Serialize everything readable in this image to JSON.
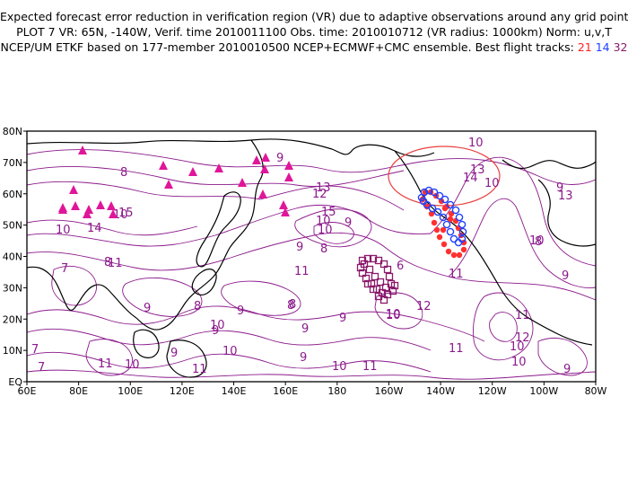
{
  "title": {
    "line1": "Expected forecast error reduction in verification region (VR) due to adaptive observations around any grid point.",
    "line2": "PLOT 7 VR: 65N, -140W, Verif. time 2010011100 Obs. time: 2010010712 (VR radius: 1000km) Norm: u,v,T",
    "line3_prefix": "NCEP/UM ETKF based on 177-member 2010010500 NCEP+ECMWF+CMC ensemble. Best flight tracks:",
    "tracks": [
      {
        "label": "21",
        "color": "#ff2020"
      },
      {
        "label": "14",
        "color": "#2040ff"
      },
      {
        "label": "32",
        "color": "#8b1a6b"
      }
    ]
  },
  "map": {
    "lat_ticks": [
      "80N",
      "70N",
      "60N",
      "50N",
      "40N",
      "30N",
      "20N",
      "10N",
      "EQ"
    ],
    "lon_ticks": [
      "60E",
      "80E",
      "100E",
      "120E",
      "140E",
      "160E",
      "180",
      "160W",
      "140W",
      "120W",
      "100W",
      "80W"
    ],
    "contour_color": "#8b1a8b",
    "contour_labels": [
      "10",
      "13",
      "14",
      "8",
      "9",
      "13",
      "12",
      "10",
      "9",
      "10",
      "14",
      "15",
      "15",
      "10",
      "9",
      "10",
      "9",
      "8",
      "11",
      "11",
      "7",
      "8",
      "9",
      "10",
      "9",
      "8",
      "9",
      "10",
      "11",
      "12",
      "11",
      "10",
      "9",
      "7",
      "11",
      "10",
      "9",
      "10",
      "8",
      "9",
      "10",
      "11",
      "12",
      "11",
      "10",
      "9",
      "8",
      "10",
      "7",
      "10",
      "11",
      "9",
      "13",
      "6",
      "9",
      "10",
      "8"
    ],
    "vr_circle_color": "#e84040",
    "triangle_color": "#e0169a",
    "track_red_color": "#ff3030",
    "track_blue_color": "#2040ff",
    "track_purple_color": "#8b1a6b"
  }
}
